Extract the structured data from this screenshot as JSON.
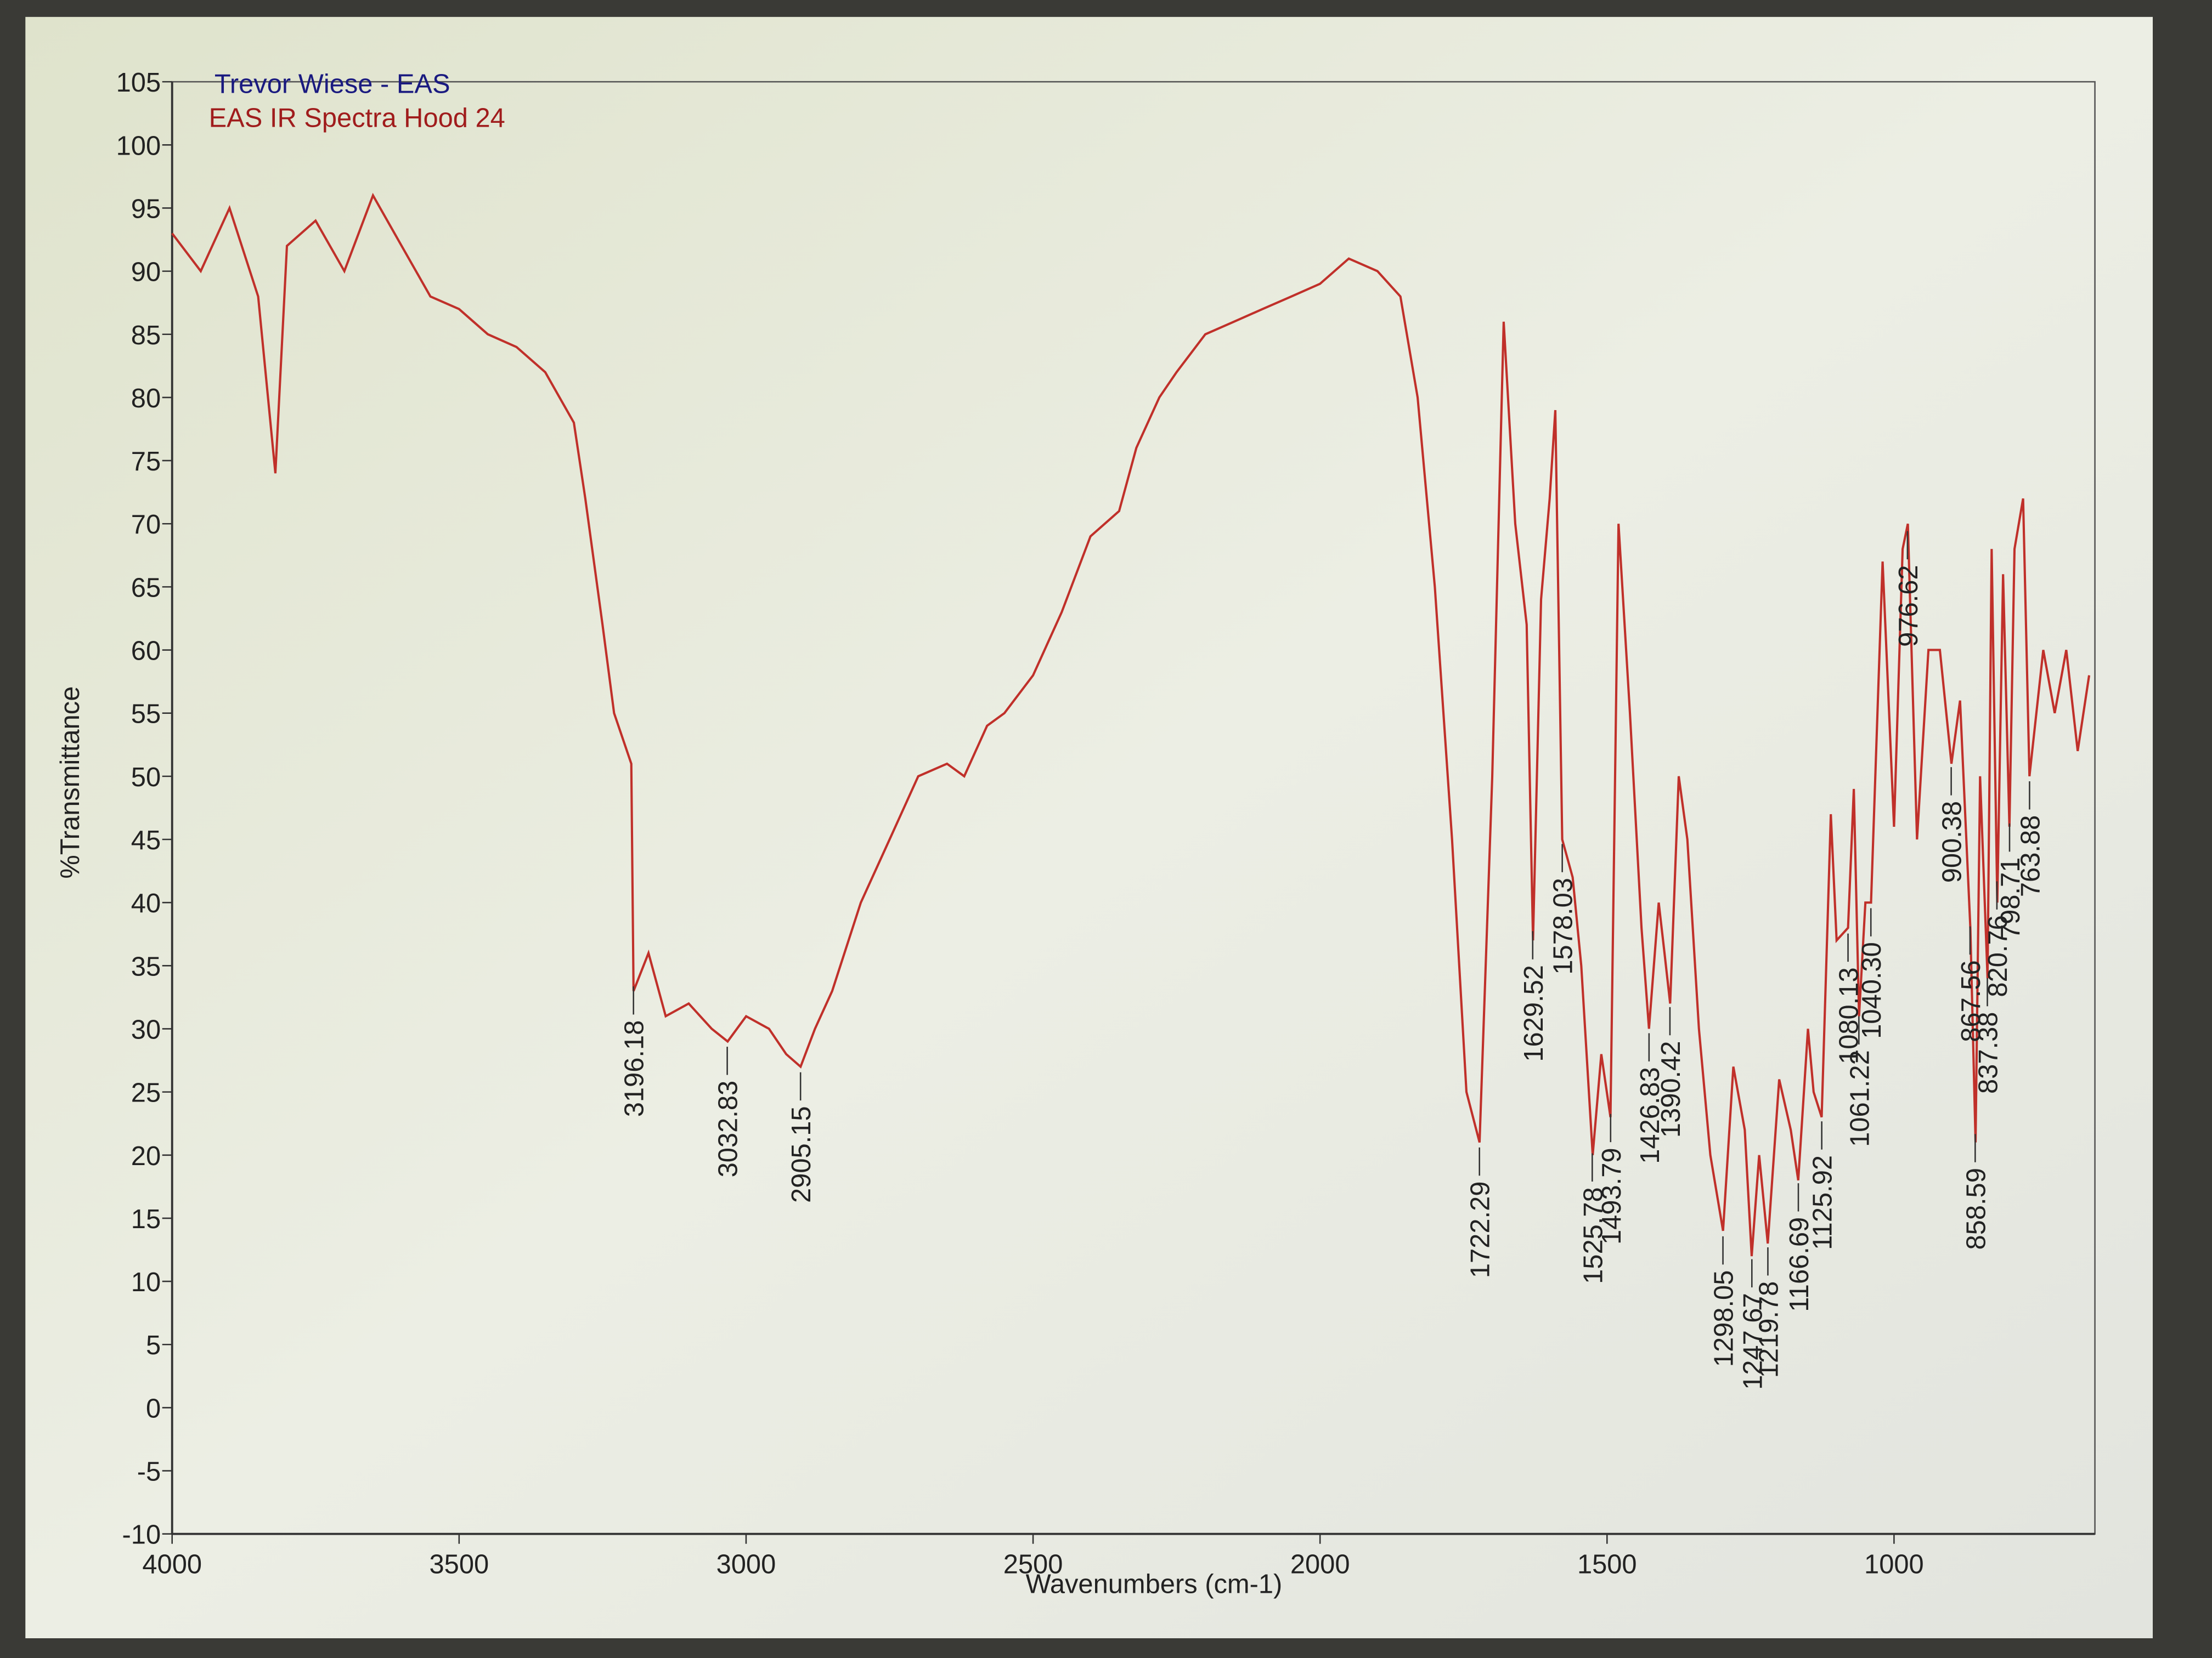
{
  "chart_data": {
    "type": "line",
    "title": "Trevor Wiese - EAS",
    "subtitle": "EAS IR Spectra Hood 24",
    "xlabel": "Wavenumbers (cm-1)",
    "ylabel": "%Transmittance",
    "color": "#c0302a",
    "x": [
      4000,
      3950,
      3900,
      3850,
      3820,
      3800,
      3750,
      3700,
      3650,
      3600,
      3550,
      3500,
      3450,
      3400,
      3350,
      3300,
      3280,
      3250,
      3230,
      3200,
      3196,
      3170,
      3140,
      3100,
      3060,
      3032,
      3000,
      2960,
      2930,
      2905,
      2880,
      2850,
      2800,
      2750,
      2700,
      2650,
      2620,
      2580,
      2550,
      2500,
      2450,
      2400,
      2350,
      2320,
      2280,
      2250,
      2200,
      2150,
      2100,
      2050,
      2000,
      1950,
      1900,
      1860,
      1830,
      1800,
      1770,
      1745,
      1722,
      1700,
      1680,
      1660,
      1640,
      1629,
      1615,
      1600,
      1590,
      1578,
      1560,
      1545,
      1525,
      1510,
      1494,
      1480,
      1460,
      1440,
      1427,
      1410,
      1400,
      1390,
      1375,
      1360,
      1340,
      1320,
      1298,
      1280,
      1260,
      1248,
      1235,
      1220,
      1200,
      1180,
      1167,
      1150,
      1140,
      1126,
      1110,
      1100,
      1080,
      1070,
      1061,
      1050,
      1040,
      1020,
      1000,
      985,
      976,
      960,
      940,
      920,
      900,
      885,
      867,
      858,
      850,
      837,
      830,
      820,
      810,
      799,
      790,
      775,
      764,
      740,
      720,
      700,
      680,
      660
    ],
    "values": [
      93,
      90,
      95,
      88,
      74,
      92,
      94,
      90,
      96,
      92,
      88,
      87,
      85,
      84,
      82,
      78,
      72,
      62,
      55,
      51,
      33,
      36,
      31,
      32,
      30,
      29,
      31,
      30,
      28,
      27,
      30,
      33,
      40,
      45,
      50,
      51,
      50,
      54,
      55,
      58,
      63,
      69,
      71,
      76,
      80,
      82,
      85,
      86,
      87,
      88,
      89,
      91,
      90,
      88,
      80,
      65,
      45,
      25,
      21,
      50,
      86,
      70,
      62,
      37,
      64,
      72,
      79,
      45,
      42,
      35,
      20,
      28,
      23,
      70,
      55,
      38,
      30,
      40,
      36,
      32,
      50,
      45,
      30,
      20,
      14,
      27,
      22,
      12,
      20,
      13,
      26,
      22,
      18,
      30,
      25,
      23,
      47,
      37,
      38,
      49,
      31,
      40,
      40,
      67,
      46,
      68,
      70,
      45,
      60,
      60,
      51,
      56,
      38,
      21,
      50,
      34,
      68,
      40,
      66,
      46,
      68,
      72,
      50,
      60,
      55,
      60,
      52,
      58
    ],
    "peaks": [
      3196.18,
      3032.83,
      2905.15,
      1722.29,
      1629.52,
      1578.03,
      1525.78,
      1493.79,
      1426.83,
      1390.42,
      1298.05,
      1247.67,
      1219.78,
      1166.69,
      1125.92,
      1080.13,
      1061.22,
      {
        "value": 1040.3,
        "label": "1040.30"
      },
      976.62,
      900.38,
      867.56,
      858.59,
      837.38,
      820.76,
      798.71,
      763.88
    ],
    "xlim": [
      4000,
      650
    ],
    "xticks": [
      4000,
      3500,
      3000,
      2500,
      2000,
      1500,
      1000
    ],
    "ylim": [
      -10,
      105
    ],
    "yticks": [
      -10,
      -5,
      0,
      5,
      10,
      15,
      20,
      25,
      30,
      35,
      40,
      45,
      50,
      55,
      60,
      65,
      70,
      75,
      80,
      85,
      90,
      95,
      100,
      105
    ]
  }
}
